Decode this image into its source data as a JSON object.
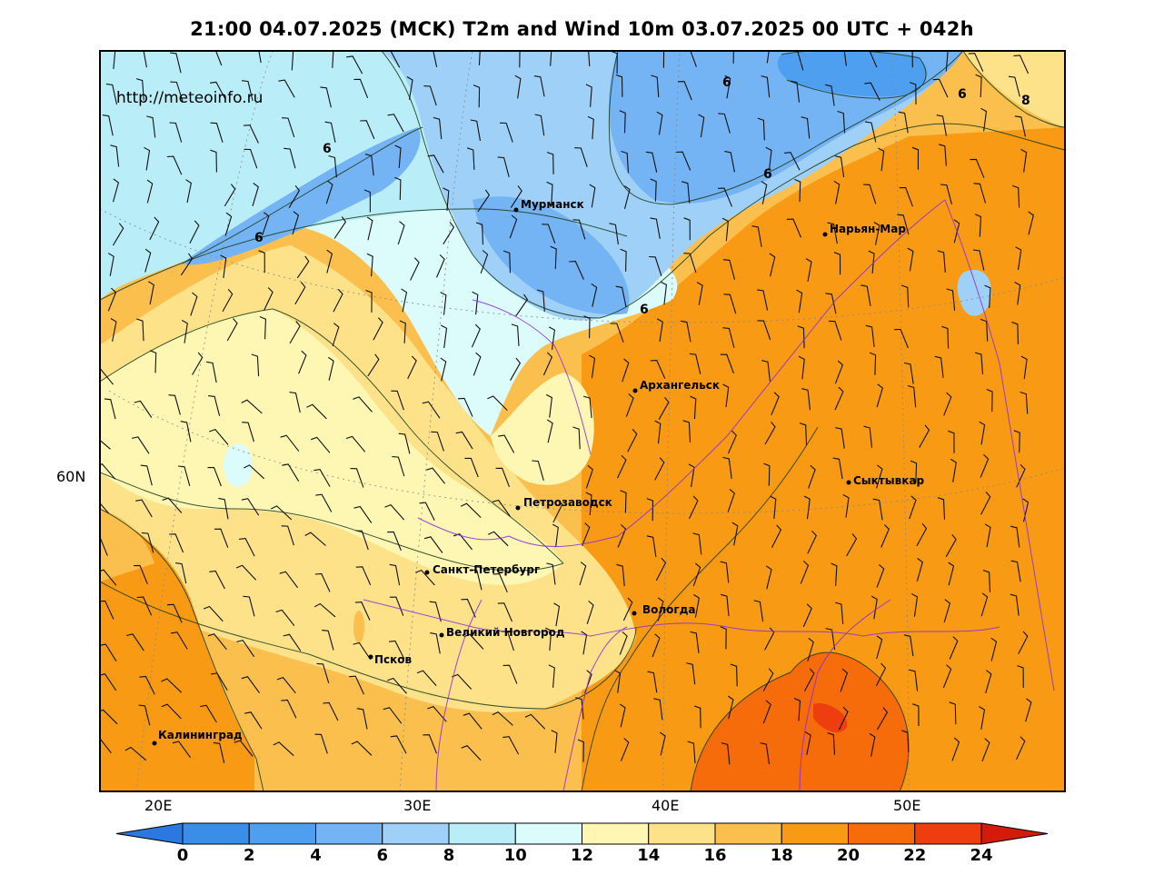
{
  "title": "21:00 04.07.2025 (MCK) T2m and Wind 10m 03.07.2025 00 UTC + 042h",
  "watermark": "http://meteoinfo.ru",
  "lat_labels": [
    "60N"
  ],
  "lon_labels": [
    "20E",
    "30E",
    "40E",
    "50E"
  ],
  "cities": [
    {
      "name": "Мурманск"
    },
    {
      "name": "Нарьян-Мар"
    },
    {
      "name": "Архангельск"
    },
    {
      "name": "Сыктывкар"
    },
    {
      "name": "Петрозаводск"
    },
    {
      "name": "Санкт-Петербург"
    },
    {
      "name": "Вологда"
    },
    {
      "name": "Великий Новгород"
    },
    {
      "name": "Псков"
    },
    {
      "name": "Калининград"
    }
  ],
  "contour_labels": [
    "6",
    "6",
    "6",
    "6",
    "6",
    "6",
    "8"
  ],
  "colorbar": {
    "ticks": [
      "0",
      "2",
      "4",
      "6",
      "8",
      "10",
      "12",
      "14",
      "16",
      "18",
      "20",
      "22",
      "24"
    ],
    "colors": [
      "#3b8ee8",
      "#4f9ff0",
      "#74b3f4",
      "#9fd0f7",
      "#b9eef9",
      "#dcfbfb",
      "#fef7b4",
      "#fde28a",
      "#fbbf4e",
      "#f89a14",
      "#f66b0a",
      "#ee3e10"
    ],
    "under_color": "#2b78e0",
    "over_color": "#d41a0a"
  }
}
